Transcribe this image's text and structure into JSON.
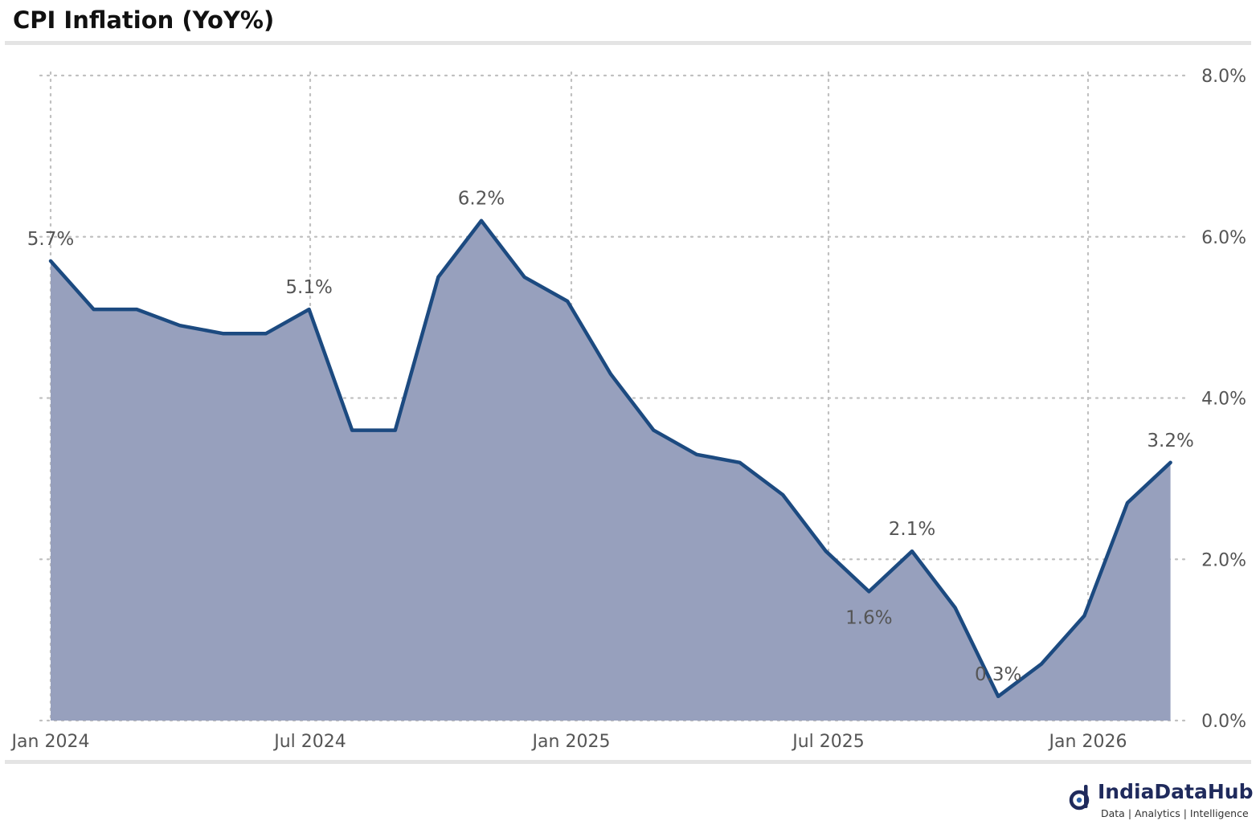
{
  "title": "CPI Inflation (YoY%)",
  "colors": {
    "line": "#1c4a80",
    "area": "#97a0bd",
    "grid": "#c0c0c0",
    "text": "#555555",
    "brand": "#1f2a5c"
  },
  "logo": {
    "icon": "indiadatahub-logo-icon",
    "name": "IndiaDataHub",
    "tagline": "Data | Analytics | Intelligence"
  },
  "chart_data": {
    "type": "area",
    "title": "CPI Inflation (YoY%)",
    "xlabel": "",
    "ylabel": "",
    "ylim": [
      0,
      8
    ],
    "grid": true,
    "y_axis_side": "right",
    "y_ticks": [
      0,
      2,
      4,
      6,
      8
    ],
    "y_tick_labels": [
      "0.0%",
      "2.0%",
      "4.0%",
      "6.0%",
      "8.0%"
    ],
    "x_ticks": [
      "2024-01",
      "2024-07",
      "2025-01",
      "2025-07",
      "2026-01"
    ],
    "x_tick_labels": [
      "Jan 2024",
      "Jul 2024",
      "Jan 2025",
      "Jul 2025",
      "Jan 2026"
    ],
    "x": [
      "2024-01",
      "2024-02",
      "2024-03",
      "2024-04",
      "2024-05",
      "2024-06",
      "2024-07",
      "2024-08",
      "2024-09",
      "2024-10",
      "2024-11",
      "2024-12",
      "2025-01",
      "2025-02",
      "2025-03",
      "2025-04",
      "2025-05",
      "2025-06",
      "2025-07",
      "2025-08",
      "2025-09",
      "2025-10",
      "2025-11",
      "2025-12",
      "2026-01",
      "2026-02",
      "2026-03"
    ],
    "series": [
      {
        "values": [
          5.7,
          5.1,
          5.1,
          4.9,
          4.8,
          4.8,
          5.1,
          3.6,
          3.6,
          5.5,
          6.2,
          5.5,
          5.2,
          4.3,
          3.6,
          3.3,
          3.2,
          2.8,
          2.1,
          1.6,
          2.1,
          1.4,
          0.3,
          0.7,
          1.3,
          2.7,
          3.2
        ]
      }
    ],
    "annotations": [
      {
        "x": "2024-01",
        "y": 5.7,
        "text": "5.7%",
        "position": "above"
      },
      {
        "x": "2024-07",
        "y": 5.1,
        "text": "5.1%",
        "position": "above"
      },
      {
        "x": "2024-11",
        "y": 6.2,
        "text": "6.2%",
        "position": "above"
      },
      {
        "x": "2025-08",
        "y": 1.6,
        "text": "1.6%",
        "position": "below"
      },
      {
        "x": "2025-09",
        "y": 2.1,
        "text": "2.1%",
        "position": "above"
      },
      {
        "x": "2025-11",
        "y": 0.3,
        "text": "0.3%",
        "position": "above"
      },
      {
        "x": "2026-03",
        "y": 3.2,
        "text": "3.2%",
        "position": "above"
      }
    ]
  }
}
